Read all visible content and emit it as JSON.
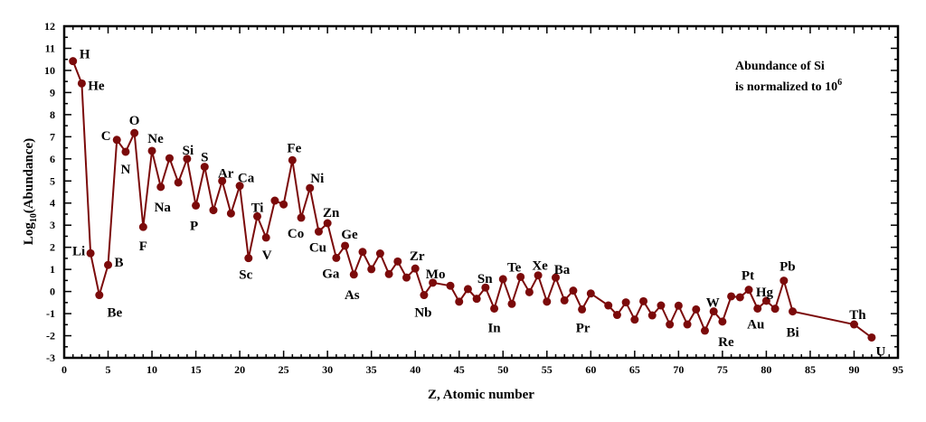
{
  "chart_data": {
    "type": "line",
    "title": "",
    "xlabel": "Z, Atomic number",
    "ylabel_main": "Log",
    "ylabel_sub": "10",
    "ylabel_rest": "(Abundance)",
    "xlim": [
      0,
      95
    ],
    "ylim": [
      -3,
      12
    ],
    "xticks": [
      0,
      5,
      10,
      15,
      20,
      25,
      30,
      35,
      40,
      45,
      50,
      55,
      60,
      65,
      70,
      75,
      80,
      85,
      90,
      95
    ],
    "yticks": [
      -3,
      -2,
      -1,
      0,
      1,
      2,
      3,
      4,
      5,
      6,
      7,
      8,
      9,
      10,
      11,
      12
    ],
    "grid": false,
    "markers": true,
    "color": "#7b0a0a",
    "annotation": {
      "line1": "Abundance of Si",
      "line2": "is normalized to 10",
      "superscript": "6"
    },
    "series": [
      {
        "z": [
          1,
          2,
          3,
          4,
          5,
          6,
          7,
          8,
          9,
          10,
          11,
          12,
          13,
          14,
          15,
          16,
          17,
          18,
          19,
          20,
          21,
          22,
          23,
          24,
          25,
          26,
          27,
          28,
          29,
          30,
          31,
          32,
          33,
          34,
          35,
          36,
          37,
          38,
          39,
          40,
          41,
          42,
          44,
          45,
          46,
          47,
          48,
          49,
          50,
          51,
          52,
          53,
          54,
          55,
          56,
          57,
          58,
          59,
          60,
          62,
          63,
          64,
          65,
          66,
          67,
          68,
          69,
          70,
          71,
          72,
          73,
          74,
          75,
          76,
          77,
          78,
          79,
          80,
          81,
          82,
          83,
          90,
          92
        ],
        "log_abundance": [
          10.42,
          9.41,
          1.73,
          -0.16,
          1.2,
          6.86,
          6.32,
          7.17,
          2.92,
          6.36,
          4.73,
          6.03,
          4.93,
          6.0,
          3.89,
          5.64,
          3.68,
          5.0,
          3.53,
          4.78,
          1.51,
          3.4,
          2.44,
          4.11,
          3.94,
          5.94,
          3.34,
          4.68,
          2.71,
          3.09,
          1.52,
          2.07,
          0.77,
          1.79,
          1.01,
          1.72,
          0.79,
          1.36,
          0.63,
          1.04,
          -0.16,
          0.4,
          0.26,
          -0.46,
          0.11,
          -0.33,
          0.18,
          -0.77,
          0.56,
          -0.56,
          0.66,
          -0.03,
          0.73,
          -0.46,
          0.63,
          -0.4,
          0.04,
          -0.81,
          -0.09,
          -0.63,
          -1.06,
          -0.49,
          -1.27,
          -0.44,
          -1.08,
          -0.63,
          -1.49,
          -0.64,
          -1.49,
          -0.81,
          -1.77,
          -0.9,
          -1.36,
          -0.22,
          -0.26,
          0.08,
          -0.77,
          -0.42,
          -0.78,
          0.49,
          -0.9,
          -1.49,
          -2.08
        ]
      }
    ],
    "labels": [
      {
        "z": 1,
        "text": "H"
      },
      {
        "z": 2,
        "text": "He"
      },
      {
        "z": 3,
        "text": "Li"
      },
      {
        "z": 4,
        "text": "Be"
      },
      {
        "z": 5,
        "text": "B"
      },
      {
        "z": 6,
        "text": "C"
      },
      {
        "z": 7,
        "text": "N"
      },
      {
        "z": 8,
        "text": "O"
      },
      {
        "z": 9,
        "text": "F"
      },
      {
        "z": 10,
        "text": "Ne"
      },
      {
        "z": 11,
        "text": "Na"
      },
      {
        "z": 14,
        "text": "Si"
      },
      {
        "z": 15,
        "text": "P"
      },
      {
        "z": 16,
        "text": "S"
      },
      {
        "z": 18,
        "text": "Ar"
      },
      {
        "z": 20,
        "text": "Ca"
      },
      {
        "z": 21,
        "text": "Sc"
      },
      {
        "z": 22,
        "text": "Ti"
      },
      {
        "z": 23,
        "text": "V"
      },
      {
        "z": 26,
        "text": "Fe"
      },
      {
        "z": 27,
        "text": "Co"
      },
      {
        "z": 28,
        "text": "Ni"
      },
      {
        "z": 29,
        "text": "Cu"
      },
      {
        "z": 30,
        "text": "Zn"
      },
      {
        "z": 31,
        "text": "Ga"
      },
      {
        "z": 32,
        "text": "Ge"
      },
      {
        "z": 33,
        "text": "As"
      },
      {
        "z": 40,
        "text": "Zr"
      },
      {
        "z": 41,
        "text": "Nb"
      },
      {
        "z": 42,
        "text": "Mo"
      },
      {
        "z": 49,
        "text": "In"
      },
      {
        "z": 50,
        "text": "Sn"
      },
      {
        "z": 52,
        "text": "Te"
      },
      {
        "z": 54,
        "text": "Xe"
      },
      {
        "z": 56,
        "text": "Ba"
      },
      {
        "z": 59,
        "text": "Pr"
      },
      {
        "z": 74,
        "text": "W"
      },
      {
        "z": 75,
        "text": "Re"
      },
      {
        "z": 78,
        "text": "Pt"
      },
      {
        "z": 79,
        "text": "Au"
      },
      {
        "z": 80,
        "text": "Hg"
      },
      {
        "z": 82,
        "text": "Pb"
      },
      {
        "z": 83,
        "text": "Bi"
      },
      {
        "z": 90,
        "text": "Th"
      },
      {
        "z": 92,
        "text": "U"
      }
    ]
  }
}
